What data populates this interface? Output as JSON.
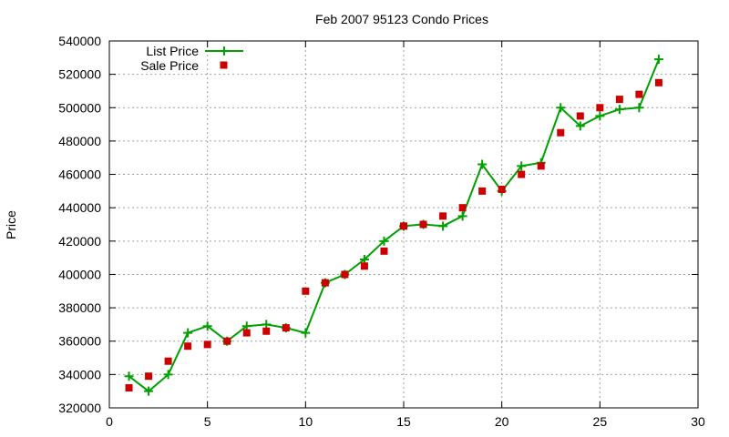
{
  "chart_data": {
    "type": "line",
    "title": "Feb 2007 95123 Condo Prices",
    "xlabel": "",
    "ylabel": "Price",
    "xlim": [
      0,
      30
    ],
    "ylim": [
      320000,
      540000
    ],
    "x_ticks": [
      "0",
      "5",
      "10",
      "15",
      "20",
      "25",
      "30"
    ],
    "y_ticks": [
      "320000",
      "340000",
      "360000",
      "380000",
      "400000",
      "420000",
      "440000",
      "460000",
      "480000",
      "500000",
      "520000",
      "540000"
    ],
    "grid": true,
    "legend_position": "top-left",
    "colors": {
      "list": "#00a000",
      "sale": "#cc0000",
      "grid": "#a0a0a0"
    },
    "series": [
      {
        "name": "List Price",
        "style": "line with plus markers",
        "x": [
          1,
          2,
          3,
          4,
          5,
          6,
          7,
          8,
          9,
          10,
          11,
          12,
          13,
          14,
          15,
          16,
          17,
          18,
          19,
          20,
          21,
          22,
          23,
          24,
          25,
          26,
          27,
          28
        ],
        "y": [
          339000,
          330000,
          340000,
          365000,
          369000,
          360000,
          369000,
          370000,
          368000,
          365000,
          395000,
          400000,
          409000,
          420000,
          429000,
          430000,
          429000,
          435000,
          466000,
          450000,
          465000,
          467000,
          500000,
          489000,
          495000,
          499000,
          500000,
          529000
        ]
      },
      {
        "name": "Sale Price",
        "style": "square markers",
        "x": [
          1,
          2,
          3,
          4,
          5,
          6,
          7,
          8,
          9,
          10,
          11,
          12,
          13,
          14,
          15,
          16,
          17,
          18,
          19,
          20,
          21,
          22,
          23,
          24,
          25,
          26,
          27,
          28
        ],
        "y": [
          332000,
          339000,
          348000,
          357000,
          358000,
          360000,
          365000,
          366000,
          368000,
          390000,
          395000,
          400000,
          405000,
          414000,
          429000,
          430000,
          435000,
          440000,
          450000,
          451000,
          460000,
          465000,
          485000,
          495000,
          500000,
          505000,
          508000,
          515000
        ]
      }
    ]
  }
}
